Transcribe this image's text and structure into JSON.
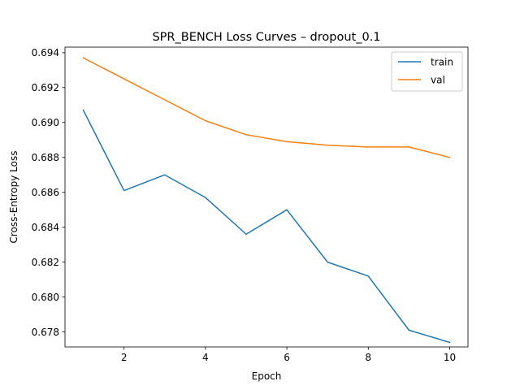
{
  "chart_data": {
    "type": "line",
    "title": "SPR_BENCH Loss Curves – dropout_0.1",
    "xlabel": "Epoch",
    "ylabel": "Cross-Entropy Loss",
    "xlim": [
      0.55,
      10.45
    ],
    "ylim": [
      0.67714,
      0.69432
    ],
    "xticks": [
      2,
      4,
      6,
      8,
      10
    ],
    "yticks": [
      0.678,
      0.68,
      0.682,
      0.684,
      0.686,
      0.688,
      0.69,
      0.692,
      0.694
    ],
    "grid": false,
    "legend_position": "top-right",
    "x": [
      1,
      2,
      3,
      4,
      5,
      6,
      7,
      8,
      9,
      10
    ],
    "series": [
      {
        "name": "train",
        "color": "#1f77b4",
        "values": [
          0.6907,
          0.6861,
          0.687,
          0.6857,
          0.6836,
          0.685,
          0.682,
          0.6812,
          0.6781,
          0.6774
        ]
      },
      {
        "name": "val",
        "color": "#ff7f0e",
        "values": [
          0.6937,
          0.6925,
          0.6913,
          0.6901,
          0.6893,
          0.6889,
          0.6887,
          0.6886,
          0.6886,
          0.688
        ]
      }
    ]
  }
}
